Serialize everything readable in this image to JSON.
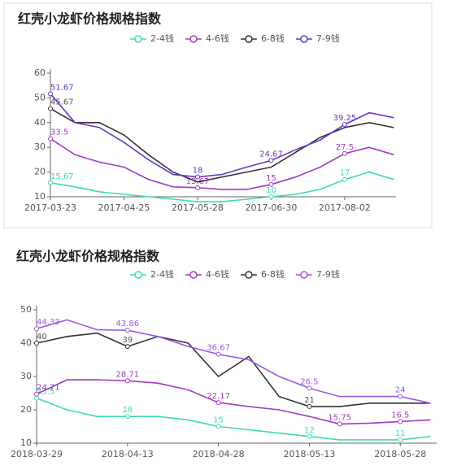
{
  "chart_data": [
    {
      "type": "line",
      "title": "红壳小龙虾价格规格指数",
      "x": [
        "2017-03-23",
        "2017-04-03",
        "2017-04-14",
        "2017-04-25",
        "2017-05-06",
        "2017-05-17",
        "2017-05-28",
        "2017-06-08",
        "2017-06-19",
        "2017-06-30",
        "2017-07-11",
        "2017-07-22",
        "2017-08-02",
        "2017-08-13",
        "2017-08-24"
      ],
      "xlim": [
        "2017-03-23",
        "2017-08-25"
      ],
      "xticks": [
        "2017-03-23",
        "2017-04-25",
        "2017-05-28",
        "2017-06-30",
        "2017-08-02"
      ],
      "ylim": [
        10,
        60
      ],
      "yticks": [
        10,
        20,
        30,
        40,
        50,
        60
      ],
      "series": [
        {
          "name": "2-4钱",
          "color": "#3ddbb0",
          "values": [
            15.67,
            14,
            12,
            11,
            10,
            9,
            8,
            8,
            9,
            10,
            11,
            13,
            17,
            20,
            17
          ],
          "value_labels": [
            "15.67",
            null,
            null,
            null,
            null,
            null,
            null,
            null,
            null,
            "10",
            null,
            null,
            "17",
            null,
            null
          ]
        },
        {
          "name": "4-6钱",
          "color": "#a23bc4",
          "values": [
            33.5,
            27,
            24,
            22,
            17,
            14,
            13.67,
            13,
            13,
            15,
            18,
            22,
            27.5,
            30,
            27
          ],
          "value_labels": [
            "33.5",
            null,
            null,
            null,
            null,
            null,
            "13.67",
            null,
            null,
            "15",
            null,
            null,
            "27.5",
            null,
            null
          ]
        },
        {
          "name": "6-8钱",
          "color": "#333333",
          "values": [
            45.67,
            40,
            40,
            35,
            27,
            20,
            16,
            18,
            20,
            22,
            28,
            34,
            38,
            40,
            38
          ],
          "value_labels": [
            "45.67",
            null,
            null,
            null,
            null,
            null,
            null,
            null,
            null,
            null,
            null,
            null,
            null,
            null,
            null
          ]
        },
        {
          "name": "7-9钱",
          "color": "#6a35c8",
          "values": [
            51.67,
            40,
            38,
            32,
            25,
            19,
            18,
            19,
            22,
            24.67,
            29,
            33,
            39.25,
            44,
            42
          ],
          "value_labels": [
            "51.67",
            null,
            null,
            null,
            null,
            null,
            "18",
            null,
            null,
            "24.67",
            null,
            null,
            "39.25",
            null,
            null
          ]
        }
      ]
    },
    {
      "type": "line",
      "title": "红壳小龙虾价格规格指数",
      "x": [
        "2018-03-29",
        "2018-04-03",
        "2018-04-08",
        "2018-04-13",
        "2018-04-18",
        "2018-04-23",
        "2018-04-28",
        "2018-05-03",
        "2018-05-08",
        "2018-05-13",
        "2018-05-18",
        "2018-05-23",
        "2018-05-28",
        "2018-06-02"
      ],
      "xlim": [
        "2018-03-29",
        "2018-06-03"
      ],
      "xticks": [
        "2018-03-29",
        "2018-04-13",
        "2018-04-28",
        "2018-05-13",
        "2018-05-28"
      ],
      "ylim": [
        10,
        50
      ],
      "yticks": [
        10,
        20,
        30,
        40,
        50
      ],
      "series": [
        {
          "name": "2-4钱",
          "color": "#3ddbb0",
          "values": [
            23.5,
            20,
            18,
            18,
            18,
            17,
            15,
            14,
            13,
            12,
            11,
            11,
            11,
            12
          ],
          "value_labels": [
            "23.5",
            null,
            null,
            "18",
            null,
            null,
            "15",
            null,
            null,
            "12",
            null,
            null,
            "11",
            null
          ]
        },
        {
          "name": "4-6钱",
          "color": "#a23bc4",
          "values": [
            24.71,
            29,
            29,
            28.71,
            28,
            26,
            22.17,
            21,
            20,
            18,
            15.75,
            16,
            16.5,
            17
          ],
          "value_labels": [
            "24.71",
            null,
            null,
            "28.71",
            null,
            null,
            "22.17",
            null,
            null,
            null,
            "15.75",
            null,
            "16.5",
            null
          ]
        },
        {
          "name": "6-8钱",
          "color": "#333333",
          "values": [
            40,
            42,
            43,
            39,
            42,
            40,
            30,
            36,
            24,
            21,
            21,
            22,
            22,
            22
          ],
          "value_labels": [
            "40",
            null,
            null,
            "39",
            null,
            null,
            null,
            null,
            null,
            "21",
            null,
            null,
            null,
            null
          ]
        },
        {
          "name": "7-9钱",
          "color": "#9b59e6",
          "values": [
            44.33,
            47,
            44,
            43.86,
            42,
            39,
            36.67,
            35,
            30,
            26.5,
            24,
            24,
            24,
            22
          ],
          "value_labels": [
            "44.33",
            null,
            null,
            "43.86",
            null,
            null,
            "36.67",
            null,
            null,
            "26.5",
            null,
            null,
            "24",
            null
          ]
        }
      ]
    }
  ]
}
